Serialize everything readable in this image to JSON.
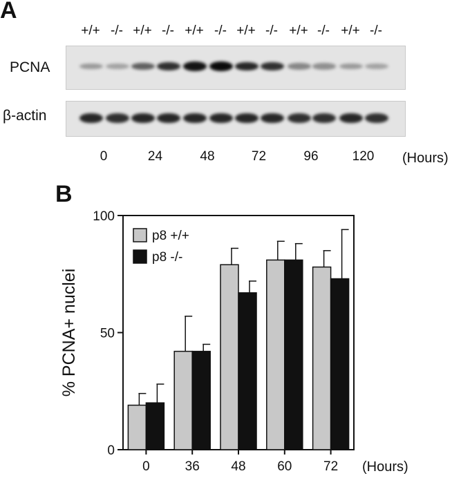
{
  "panel_a": {
    "letter": "A",
    "genotypes": [
      "+/+",
      "-/-",
      "+/+",
      "-/-",
      "+/+",
      "-/-",
      "+/+",
      "-/-",
      "+/+",
      "-/-",
      "+/+",
      "-/-"
    ],
    "rows": [
      {
        "label": "PCNA",
        "intensities": [
          0.25,
          0.2,
          0.55,
          0.8,
          0.95,
          1.0,
          0.85,
          0.8,
          0.35,
          0.3,
          0.25,
          0.2
        ]
      },
      {
        "label": "β-actin",
        "intensities": [
          0.85,
          0.8,
          0.85,
          0.85,
          0.85,
          0.85,
          0.85,
          0.85,
          0.8,
          0.8,
          0.85,
          0.8
        ]
      }
    ],
    "times": [
      "0",
      "24",
      "48",
      "72",
      "96",
      "120"
    ],
    "unit": "(Hours)"
  },
  "panel_b": {
    "letter": "B"
  },
  "chart_data": {
    "type": "bar",
    "categories": [
      "0",
      "36",
      "48",
      "60",
      "72"
    ],
    "series": [
      {
        "name": "p8 +/+",
        "color": "#c8c8c8",
        "values": [
          19,
          42,
          79,
          81,
          78
        ],
        "errors": [
          5,
          15,
          7,
          8,
          7
        ]
      },
      {
        "name": "p8 -/-",
        "color": "#111111",
        "values": [
          20,
          42,
          67,
          81,
          73
        ],
        "errors": [
          8,
          3,
          5,
          7,
          21
        ]
      }
    ],
    "ylabel": "% PCNA+ nuclei",
    "xlabel": "(Hours)",
    "ylim": [
      0,
      100
    ],
    "yticks": [
      0,
      50,
      100
    ],
    "legend_position": "top-left"
  }
}
